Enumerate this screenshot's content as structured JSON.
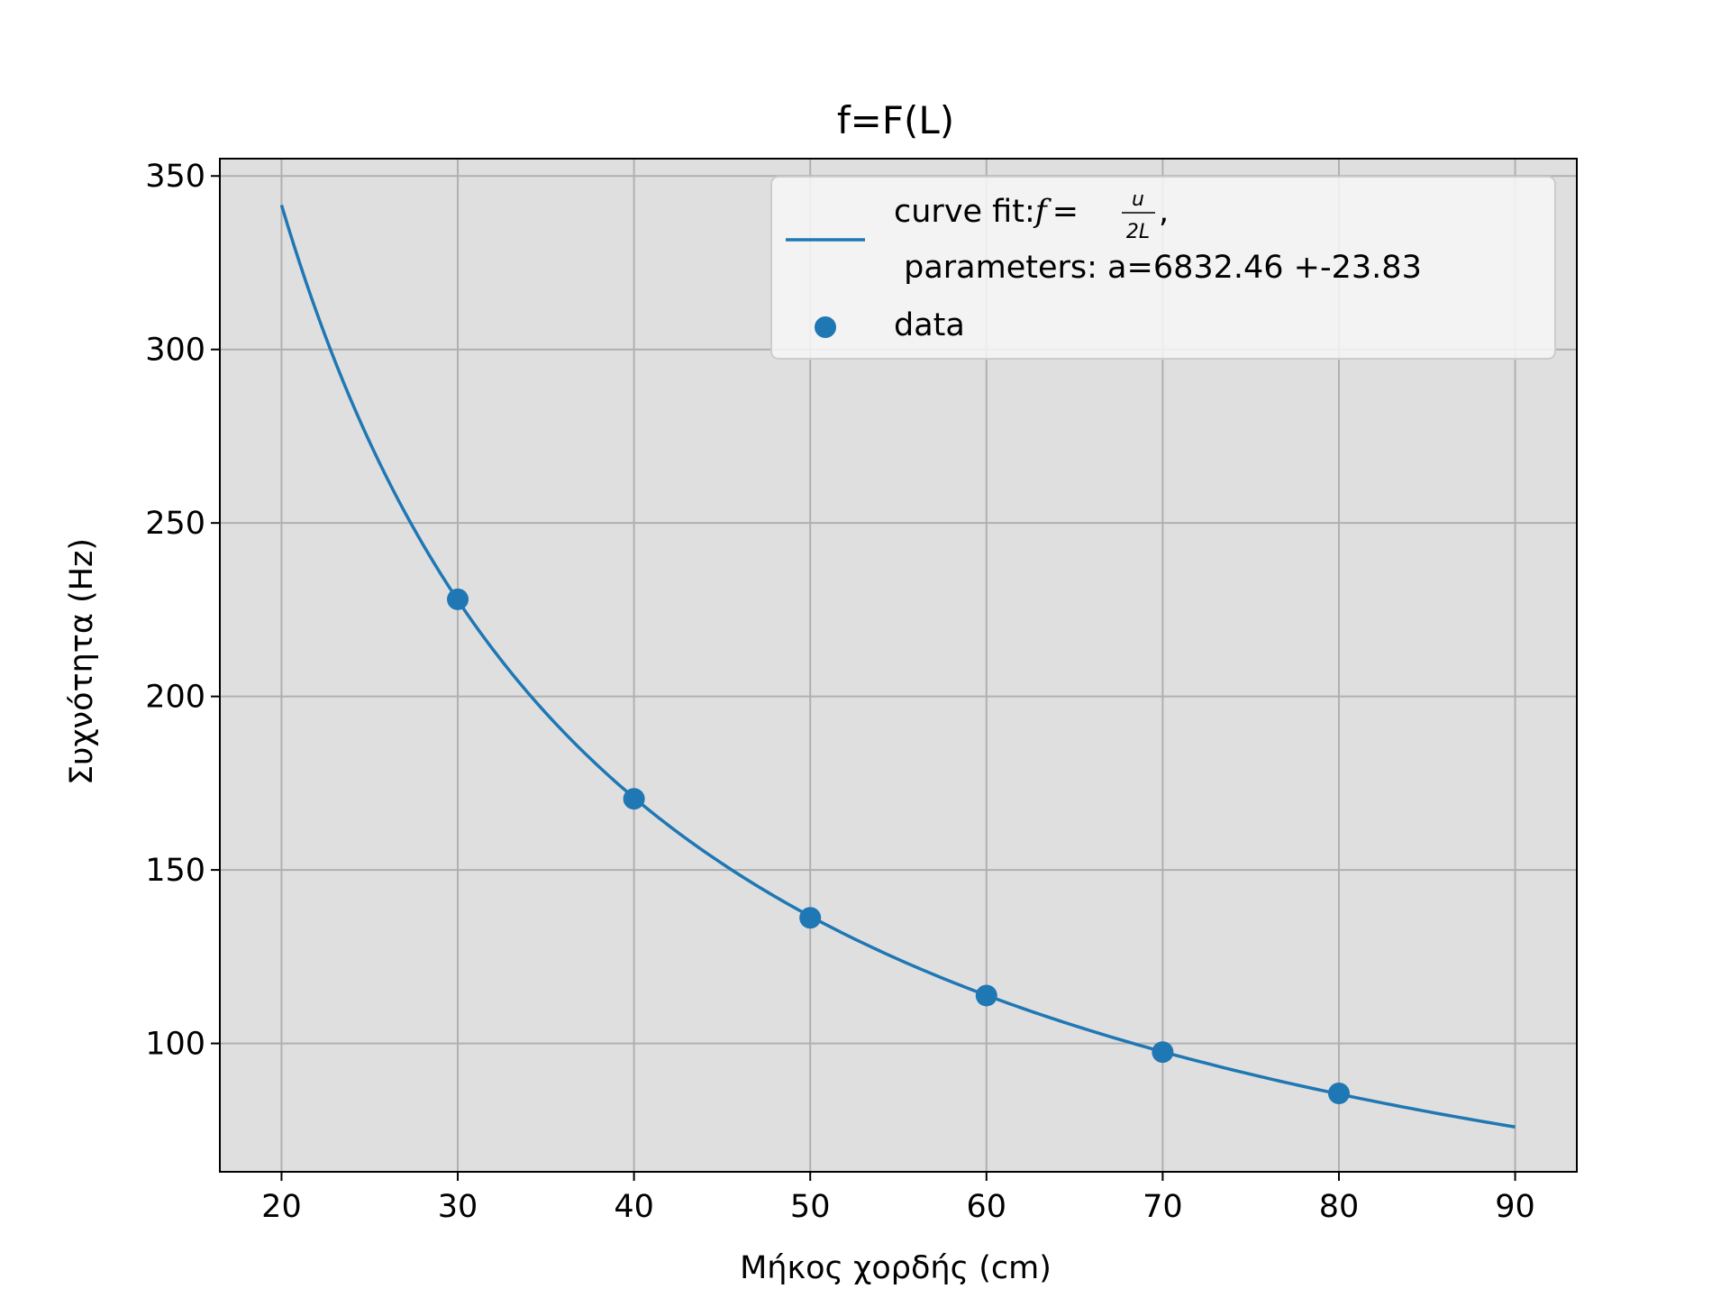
{
  "chart_data": {
    "type": "scatter",
    "title": "f=F(L)",
    "xlabel": "Μήκος χορδής (cm)",
    "ylabel": "Συχνότητα (Hz)",
    "xlim": [
      16.5,
      93.5
    ],
    "ylim": [
      63,
      355
    ],
    "xticks": [
      20,
      30,
      40,
      50,
      60,
      70,
      80,
      90
    ],
    "yticks": [
      100,
      150,
      200,
      250,
      300,
      350
    ],
    "grid": true,
    "legend_position": "upper-right",
    "series": [
      {
        "name": "data",
        "kind": "scatter",
        "color": "#1f77b4",
        "x": [
          30,
          40,
          50,
          60,
          70,
          80
        ],
        "y": [
          228,
          170.5,
          136.2,
          113.8,
          97.5,
          85.6
        ]
      },
      {
        "name": "curve fit",
        "kind": "line",
        "color": "#1f77b4",
        "model": "f = a / L",
        "a": 6832.46,
        "x_range": [
          20,
          90
        ]
      }
    ],
    "legend": {
      "fit_prefix": "curve fit:",
      "fit_formula": {
        "f": "f",
        "eq": "=",
        "num": "u",
        "den": "2L",
        "trail": ","
      },
      "fit_params": " parameters: a=6832.46 +-23.83",
      "data_label": "data"
    },
    "style": {
      "axes_bg": "#dfdfdf",
      "grid_color": "#b0b0b0",
      "legend_bg": "#f7f7f7"
    }
  }
}
